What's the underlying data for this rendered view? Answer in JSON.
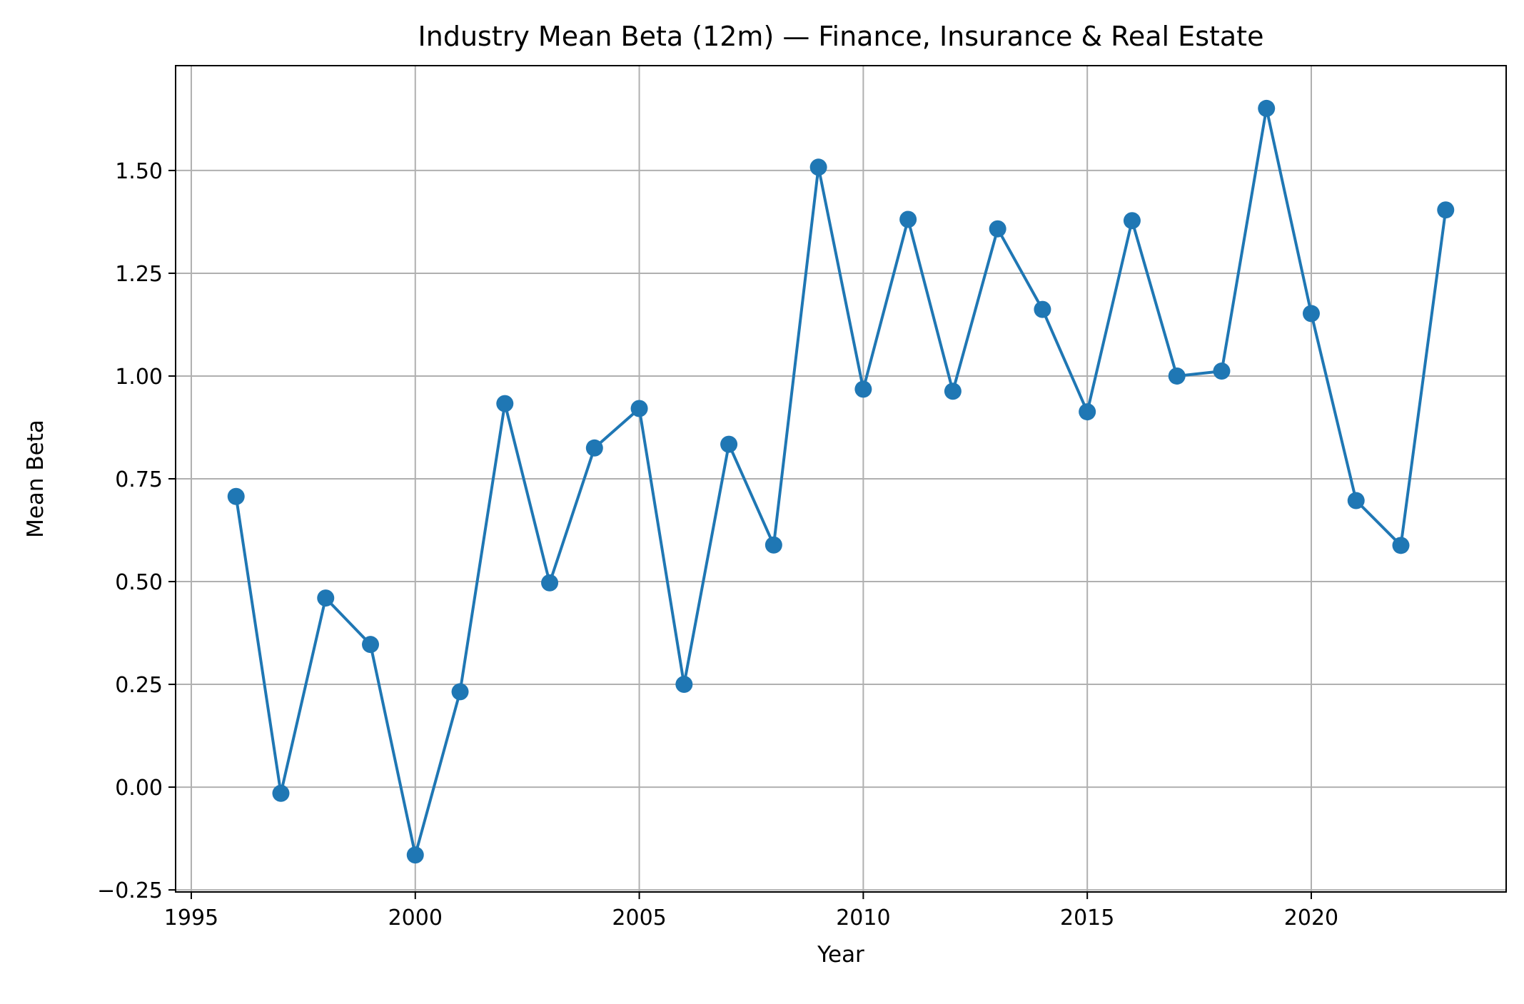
{
  "chart_data": {
    "type": "line",
    "title": "Industry Mean Beta (12m) — Finance, Insurance & Real Estate",
    "xlabel": "Year",
    "ylabel": "Mean Beta",
    "xlim": [
      1994.65,
      2024.35
    ],
    "ylim": [
      -0.255,
      1.755
    ],
    "xticks": [
      1995,
      2000,
      2005,
      2010,
      2015,
      2020
    ],
    "xtick_labels": [
      "1995",
      "2000",
      "2005",
      "2010",
      "2015",
      "2020"
    ],
    "yticks": [
      -0.25,
      0.0,
      0.25,
      0.5,
      0.75,
      1.0,
      1.25,
      1.5
    ],
    "ytick_labels": [
      "−0.25",
      "0.00",
      "0.25",
      "0.50",
      "0.75",
      "1.00",
      "1.25",
      "1.50"
    ],
    "grid": true,
    "color": "#1f77b4",
    "series": [
      {
        "x": [
          1996,
          1997,
          1998,
          1999,
          2000,
          2001,
          2002,
          2003,
          2004,
          2005,
          2006,
          2007,
          2008,
          2009,
          2010,
          2011,
          2012,
          2013,
          2014,
          2015,
          2016,
          2017,
          2018,
          2019,
          2020,
          2021,
          2022,
          2023
        ],
        "values": [
          0.707,
          -0.015,
          0.46,
          0.347,
          -0.165,
          0.232,
          0.933,
          0.497,
          0.825,
          0.921,
          0.25,
          0.834,
          0.589,
          1.508,
          0.968,
          1.381,
          0.963,
          1.358,
          1.162,
          0.913,
          1.378,
          1.0,
          1.012,
          1.651,
          1.152,
          0.697,
          0.588,
          1.404
        ]
      }
    ]
  }
}
